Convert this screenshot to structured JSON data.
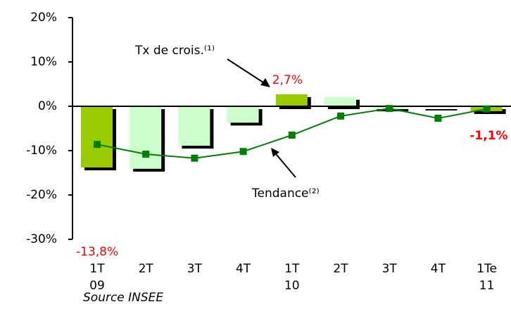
{
  "chart_data": {
    "type": "bar_line",
    "categories": [
      "1T\n09",
      "2T",
      "3T",
      "4T",
      "1T\n10",
      "2T",
      "3T",
      "4T",
      "1Te\n11"
    ],
    "series": [
      {
        "name": "Tx de crois.⁽¹⁾",
        "type": "bar",
        "colors": [
          "#99cc00",
          "#ccffcc",
          "#ccffcc",
          "#ccffcc",
          "#99cc00",
          "#ccffcc",
          "#ccffcc",
          "#ccffcc",
          "#99cc00"
        ],
        "values": [
          -13.8,
          -14.1,
          -8.9,
          -3.7,
          2.7,
          2.1,
          -0.5,
          -0.3,
          -1.1
        ],
        "value_labels": [
          "-13,8%",
          null,
          null,
          null,
          "2,7%",
          null,
          null,
          null,
          "-1,1%"
        ]
      },
      {
        "name": "Tendance⁽²⁾",
        "type": "line",
        "color": "#008000",
        "values": [
          -8.6,
          -10.8,
          -11.7,
          -10.2,
          -6.5,
          -2.2,
          -0.5,
          -2.7,
          -0.6
        ]
      }
    ],
    "ylim": [
      -30,
      20
    ],
    "yticks": [
      {
        "value": 20,
        "label": "20%"
      },
      {
        "value": 10,
        "label": "10%"
      },
      {
        "value": 0,
        "label": "0%"
      },
      {
        "value": -10,
        "label": "-10%"
      },
      {
        "value": -20,
        "label": "-20%"
      },
      {
        "value": -30,
        "label": "-30%"
      }
    ],
    "source": "Source INSEE"
  }
}
